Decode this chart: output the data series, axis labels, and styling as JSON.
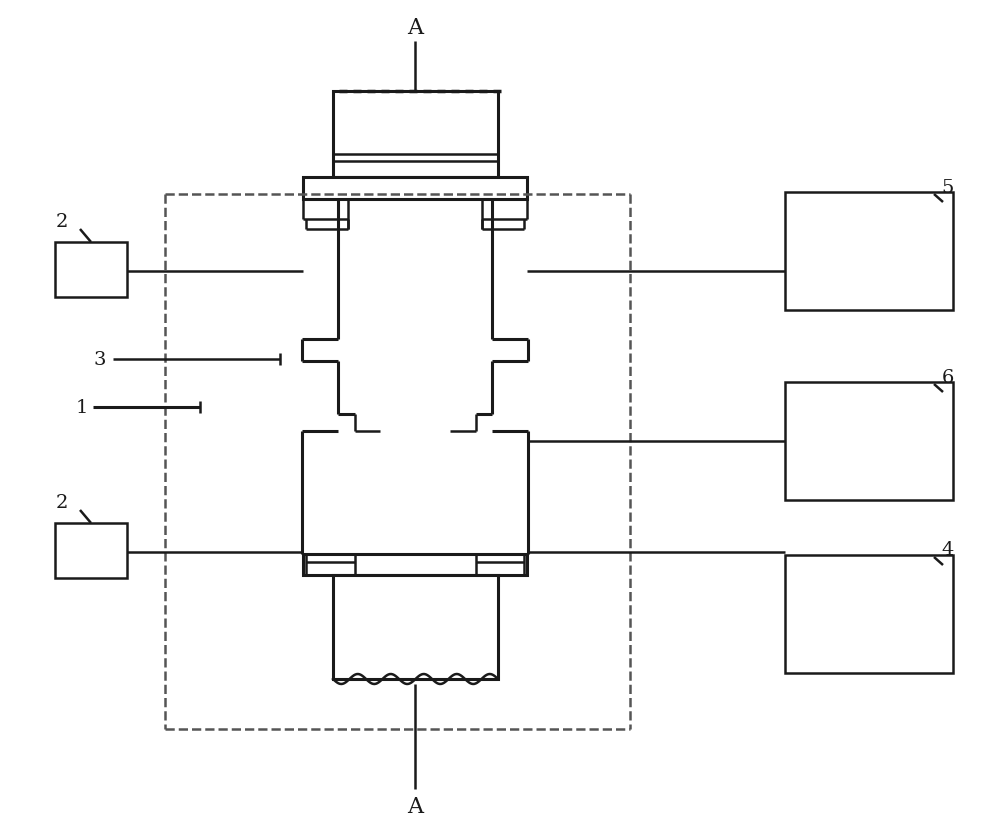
{
  "bg_color": "#ffffff",
  "lc": "#1a1a1a",
  "dc": "#555555",
  "lw": 1.8,
  "lwt": 2.2,
  "fig_w": 10.0,
  "fig_h": 8.28,
  "dpi": 100
}
